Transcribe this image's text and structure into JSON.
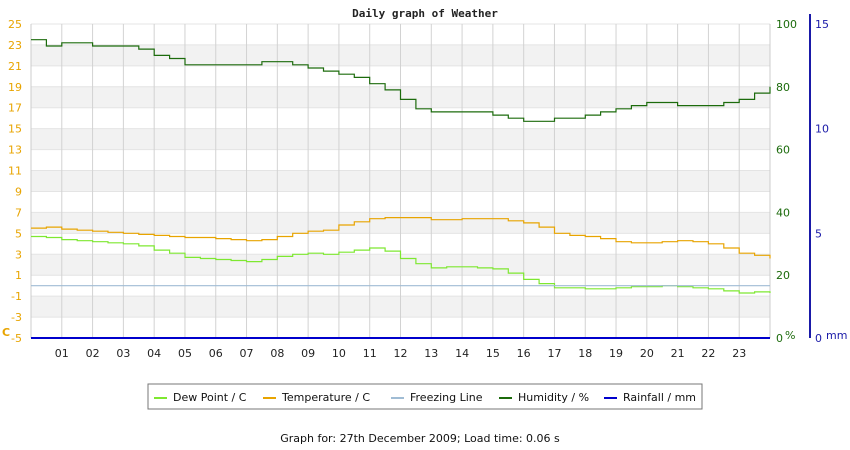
{
  "chart_data": {
    "type": "line",
    "title": "Daily graph of Weather",
    "footer": "Graph for: 27th December 2009; Load time: 0.06 s",
    "x_ticks": [
      "01",
      "02",
      "03",
      "04",
      "05",
      "06",
      "07",
      "08",
      "09",
      "10",
      "11",
      "12",
      "13",
      "14",
      "15",
      "16",
      "17",
      "18",
      "19",
      "20",
      "21",
      "22",
      "23"
    ],
    "x_range": [
      0,
      24
    ],
    "axes": {
      "left": {
        "unit_label": "C",
        "range": [
          -5,
          25
        ],
        "ticks": [
          -5,
          -3,
          -1,
          1,
          3,
          5,
          7,
          9,
          11,
          13,
          15,
          17,
          19,
          21,
          23,
          25
        ],
        "color": "#e8a400"
      },
      "right1": {
        "unit_label": "%",
        "range": [
          0,
          100
        ],
        "ticks": [
          0,
          20,
          40,
          60,
          80,
          100
        ],
        "color": "#1c6b0c"
      },
      "right2": {
        "unit_label": "mm",
        "range": [
          0,
          15
        ],
        "ticks": [
          0,
          5,
          10,
          15
        ],
        "color": "#1a1aa8"
      }
    },
    "grid": true,
    "legend_position": "bottom",
    "series": [
      {
        "name": "Dew Point / C",
        "axis": "left",
        "color": "#7ee830",
        "x": [
          0,
          0.5,
          1,
          1.5,
          2,
          2.5,
          3,
          3.5,
          4,
          4.5,
          5,
          5.5,
          6,
          6.5,
          7,
          7.5,
          8,
          8.5,
          9,
          9.5,
          10,
          10.5,
          11,
          11.5,
          12,
          12.5,
          13,
          13.5,
          14,
          14.5,
          15,
          15.5,
          16,
          16.5,
          17,
          17.5,
          18,
          18.5,
          19,
          19.5,
          20,
          20.5,
          21,
          21.5,
          22,
          22.5,
          23,
          23.5,
          24
        ],
        "y": [
          4.7,
          4.6,
          4.4,
          4.3,
          4.2,
          4.1,
          4.0,
          3.8,
          3.4,
          3.1,
          2.7,
          2.6,
          2.5,
          2.4,
          2.3,
          2.5,
          2.8,
          3.0,
          3.1,
          3.0,
          3.2,
          3.4,
          3.6,
          3.3,
          2.6,
          2.1,
          1.7,
          1.8,
          1.8,
          1.7,
          1.6,
          1.2,
          0.6,
          0.2,
          -0.2,
          -0.2,
          -0.3,
          -0.3,
          -0.2,
          -0.1,
          -0.1,
          0.0,
          -0.1,
          -0.2,
          -0.3,
          -0.5,
          -0.7,
          -0.6,
          -0.7
        ]
      },
      {
        "name": "Temperature / C",
        "axis": "left",
        "color": "#e8a400",
        "x": [
          0,
          0.5,
          1,
          1.5,
          2,
          2.5,
          3,
          3.5,
          4,
          4.5,
          5,
          5.5,
          6,
          6.5,
          7,
          7.5,
          8,
          8.5,
          9,
          9.5,
          10,
          10.5,
          11,
          11.5,
          12,
          12.5,
          13,
          13.5,
          14,
          14.5,
          15,
          15.5,
          16,
          16.5,
          17,
          17.5,
          18,
          18.5,
          19,
          19.5,
          20,
          20.5,
          21,
          21.5,
          22,
          22.5,
          23,
          23.5,
          24
        ],
        "y": [
          5.5,
          5.6,
          5.4,
          5.3,
          5.2,
          5.1,
          5.0,
          4.9,
          4.8,
          4.7,
          4.6,
          4.6,
          4.5,
          4.4,
          4.3,
          4.4,
          4.7,
          5.0,
          5.2,
          5.3,
          5.8,
          6.1,
          6.4,
          6.5,
          6.5,
          6.5,
          6.3,
          6.3,
          6.4,
          6.4,
          6.4,
          6.2,
          6.0,
          5.6,
          5.0,
          4.8,
          4.7,
          4.5,
          4.2,
          4.1,
          4.1,
          4.2,
          4.3,
          4.2,
          4.0,
          3.6,
          3.1,
          2.9,
          2.6
        ]
      },
      {
        "name": "Freezing Line",
        "axis": "left",
        "color": "#a0bcd4",
        "x": [
          0,
          24
        ],
        "y": [
          0,
          0
        ]
      },
      {
        "name": "Humidity / %",
        "axis": "right1",
        "color": "#1c6b0c",
        "x": [
          0,
          0.5,
          1,
          1.5,
          2,
          2.5,
          3,
          3.5,
          4,
          4.5,
          5,
          5.5,
          6,
          6.5,
          7,
          7.5,
          8,
          8.5,
          9,
          9.5,
          10,
          10.5,
          11,
          11.5,
          12,
          12.5,
          13,
          13.5,
          14,
          14.5,
          15,
          15.5,
          16,
          16.5,
          17,
          17.5,
          18,
          18.5,
          19,
          19.5,
          20,
          20.5,
          21,
          21.5,
          22,
          22.5,
          23,
          23.5,
          24
        ],
        "y": [
          95,
          93,
          94,
          94,
          93,
          93,
          93,
          92,
          90,
          89,
          87,
          87,
          87,
          87,
          87,
          88,
          88,
          87,
          86,
          85,
          84,
          83,
          81,
          79,
          76,
          73,
          72,
          72,
          72,
          72,
          71,
          70,
          69,
          69,
          70,
          70,
          71,
          72,
          73,
          74,
          75,
          75,
          74,
          74,
          74,
          75,
          76,
          78,
          80
        ]
      },
      {
        "name": "Rainfall / mm",
        "axis": "right2",
        "color": "#0000cc",
        "x": [
          0,
          24
        ],
        "y": [
          0,
          0
        ]
      }
    ]
  }
}
